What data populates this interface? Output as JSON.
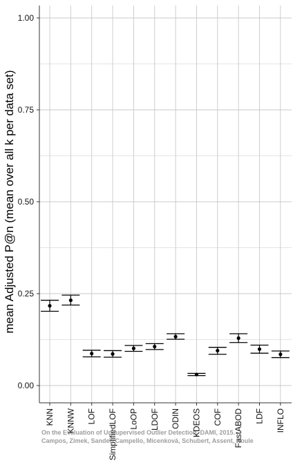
{
  "chart_data": {
    "type": "errorbar",
    "title": "",
    "xlabel": "",
    "ylabel": "mean Adjusted P@n (mean over all k per data set)",
    "ylim": [
      0.0,
      1.0
    ],
    "y_ticks": [
      "0.00",
      "0.25",
      "0.50",
      "0.75",
      "1.00"
    ],
    "grid": true,
    "categories": [
      "KNN",
      "KNNW",
      "LOF",
      "SimplifiedLOF",
      "LoOP",
      "LDOF",
      "ODIN",
      "KDEOS",
      "COF",
      "FastABOD",
      "LDF",
      "INFLO"
    ],
    "mean": [
      0.217,
      0.232,
      0.087,
      0.086,
      0.101,
      0.106,
      0.133,
      0.03,
      0.095,
      0.129,
      0.099,
      0.085
    ],
    "lower": [
      0.202,
      0.219,
      0.078,
      0.077,
      0.093,
      0.098,
      0.126,
      0.027,
      0.085,
      0.117,
      0.088,
      0.076
    ],
    "upper": [
      0.232,
      0.246,
      0.096,
      0.095,
      0.109,
      0.114,
      0.141,
      0.033,
      0.104,
      0.141,
      0.11,
      0.094
    ]
  },
  "watermark": {
    "line1": "On the Evaluation of Unsupervised Outlier Detection, DAMI, 2015.",
    "line2": "Campos, Zimek, Sander, Campello, Micenková, Schubert, Assent, Houle"
  },
  "colors": {
    "grid": "#c8c8c8",
    "axis": "#333333",
    "marks": "#000000"
  }
}
